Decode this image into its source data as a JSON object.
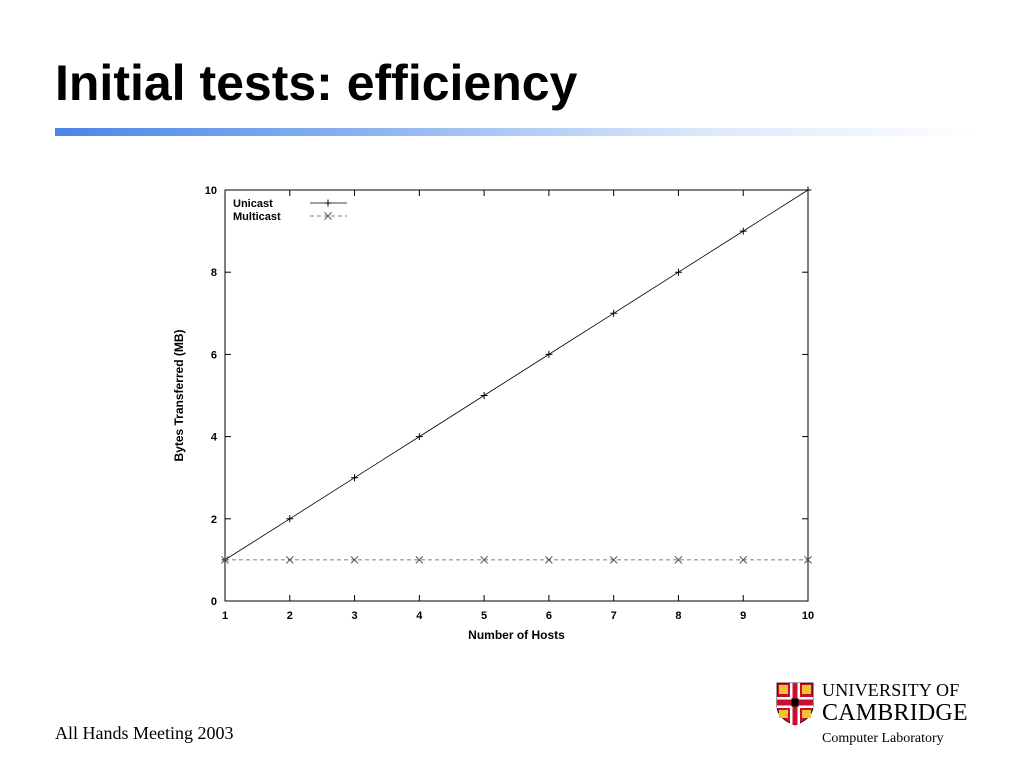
{
  "slide": {
    "title": "Initial tests: efficiency",
    "footer": "All Hands Meeting 2003"
  },
  "logo": {
    "line1": "UNIVERSITY OF",
    "line2": "CAMBRIDGE",
    "line3": "Computer Laboratory",
    "colors": {
      "red": "#c8102e",
      "gold": "#f2c230",
      "black": "#000000"
    }
  },
  "chart_data": {
    "type": "line",
    "title": "",
    "xlabel": "Number of Hosts",
    "ylabel": "Bytes Transferred (MB)",
    "xlim": [
      1,
      10
    ],
    "ylim": [
      0,
      10
    ],
    "x_ticks": [
      1,
      2,
      3,
      4,
      5,
      6,
      7,
      8,
      9,
      10
    ],
    "y_ticks": [
      0,
      2,
      4,
      6,
      8,
      10
    ],
    "grid": false,
    "legend_position": "top-left",
    "x": [
      1,
      2,
      3,
      4,
      5,
      6,
      7,
      8,
      9,
      10
    ],
    "series": [
      {
        "name": "Unicast",
        "marker": "plus",
        "line": "solid",
        "color": "#000000",
        "values": [
          1,
          2,
          3,
          4,
          5,
          6,
          7,
          8,
          9,
          10
        ]
      },
      {
        "name": "Multicast",
        "marker": "cross",
        "line": "dashed",
        "color": "#555555",
        "values": [
          1,
          1,
          1,
          1,
          1,
          1,
          1,
          1,
          1,
          1
        ]
      }
    ]
  }
}
